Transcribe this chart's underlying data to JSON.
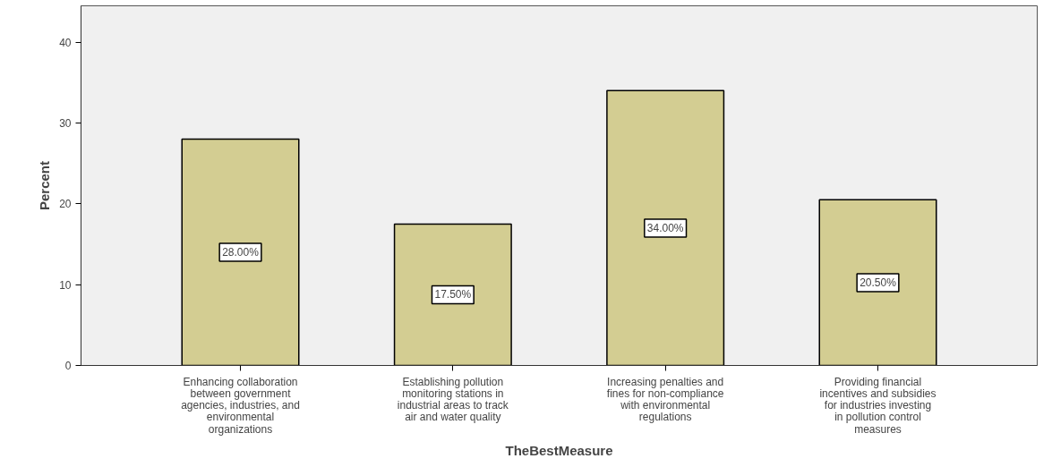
{
  "chart_data": {
    "type": "bar",
    "xlabel": "TheBestMeasure",
    "ylabel": "Percent",
    "categories": [
      "Enhancing collaboration between government agencies, industries, and environmental organizations",
      "Establishing pollution monitoring stations in industrial areas to track air and water quality",
      "Increasing penalties and fines for non-compliance with environmental regulations",
      "Providing financial incentives and subsidies for industries investing in pollution control measures"
    ],
    "values": [
      28.0,
      17.5,
      34.0,
      20.5
    ],
    "value_labels": [
      "28.00%",
      "17.50%",
      "34.00%",
      "20.50%"
    ],
    "color": "#d3cd92",
    "ylim": [
      0,
      44.5
    ],
    "yticks": [
      0,
      10,
      20,
      30,
      40
    ],
    "grid": false
  }
}
